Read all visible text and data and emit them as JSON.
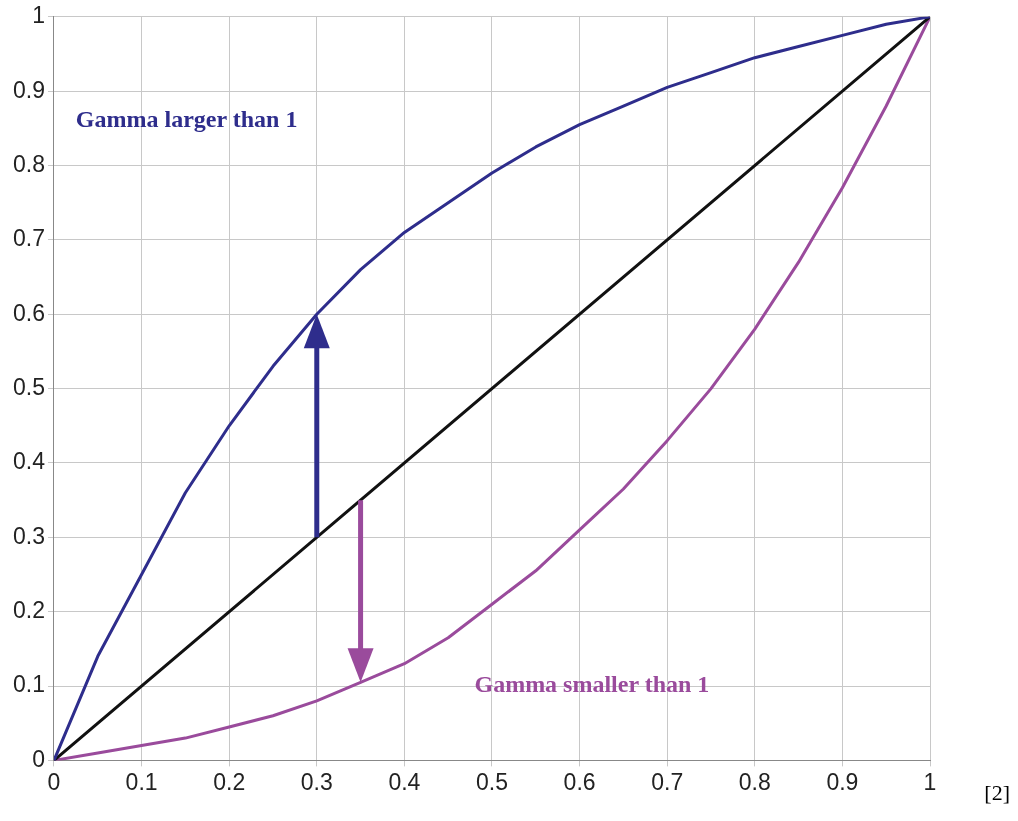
{
  "chart_data": {
    "type": "line",
    "series": [
      {
        "name": "Gamma larger than 1",
        "color": "#2e2d8c",
        "x": [
          0,
          0.05,
          0.1,
          0.15,
          0.2,
          0.25,
          0.3,
          0.35,
          0.4,
          0.45,
          0.5,
          0.55,
          0.6,
          0.65,
          0.7,
          0.75,
          0.8,
          0.85,
          0.9,
          0.95,
          1
        ],
        "values": [
          0,
          0.14,
          0.25,
          0.36,
          0.45,
          0.53,
          0.6,
          0.66,
          0.71,
          0.75,
          0.79,
          0.825,
          0.855,
          0.88,
          0.905,
          0.925,
          0.945,
          0.96,
          0.975,
          0.99,
          1
        ]
      },
      {
        "color": "#111111",
        "x": [
          0,
          1
        ],
        "values": [
          0,
          1
        ]
      },
      {
        "name": "Gamma smaller than 1",
        "color": "#9a4b9c",
        "x": [
          0,
          0.05,
          0.1,
          0.15,
          0.2,
          0.25,
          0.3,
          0.35,
          0.4,
          0.45,
          0.5,
          0.55,
          0.6,
          0.65,
          0.7,
          0.75,
          0.8,
          0.85,
          0.9,
          0.95,
          1
        ],
        "values": [
          0,
          0.01,
          0.02,
          0.03,
          0.045,
          0.06,
          0.08,
          0.105,
          0.13,
          0.165,
          0.21,
          0.255,
          0.31,
          0.365,
          0.43,
          0.5,
          0.58,
          0.67,
          0.77,
          0.88,
          1
        ]
      }
    ],
    "xlim": [
      0,
      1
    ],
    "ylim": [
      0,
      1
    ],
    "xticks": [
      0,
      0.1,
      0.2,
      0.3,
      0.4,
      0.5,
      0.6,
      0.7,
      0.8,
      0.9,
      1
    ],
    "yticks": [
      0,
      0.1,
      0.2,
      0.3,
      0.4,
      0.5,
      0.6,
      0.7,
      0.8,
      0.9,
      1
    ],
    "grid": true,
    "legend": false,
    "marker": "none",
    "line_style": "solid",
    "annotations": [
      "[2]"
    ]
  }
}
